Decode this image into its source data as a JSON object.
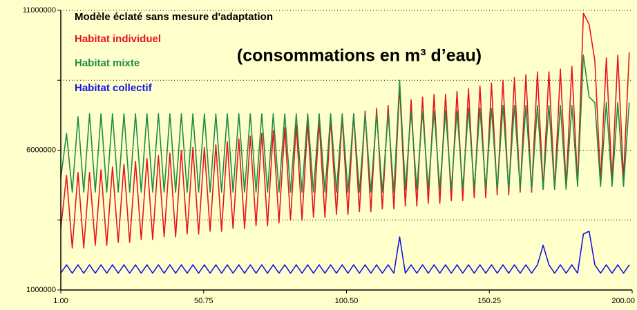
{
  "chart_data": {
    "type": "line",
    "title": "Modèle éclaté sans mesure d'adaptation",
    "annotation": "(consommations en m³ d’eau)",
    "xlim": [
      1,
      200
    ],
    "xticks": [
      {
        "value": 1,
        "label": "1.00"
      },
      {
        "value": 50.75,
        "label": "50.75"
      },
      {
        "value": 100.5,
        "label": "100.50"
      },
      {
        "value": 150.25,
        "label": "150.25"
      },
      {
        "value": 200,
        "label": "200.00"
      }
    ],
    "ylim": [
      1000000,
      11000000
    ],
    "yticks": [
      1000000,
      6000000,
      11000000
    ],
    "yminor_ticks": [
      3500000,
      8500000
    ],
    "grid": true,
    "x": [
      1,
      3,
      5,
      7,
      9,
      11,
      13,
      15,
      17,
      19,
      21,
      23,
      25,
      27,
      29,
      31,
      33,
      35,
      37,
      39,
      41,
      43,
      45,
      47,
      49,
      51,
      53,
      55,
      57,
      59,
      61,
      63,
      65,
      67,
      69,
      71,
      73,
      75,
      77,
      79,
      81,
      83,
      85,
      87,
      89,
      91,
      93,
      95,
      97,
      99,
      101,
      103,
      105,
      107,
      109,
      111,
      113,
      115,
      117,
      119,
      121,
      123,
      125,
      127,
      129,
      131,
      133,
      135,
      137,
      139,
      141,
      143,
      145,
      147,
      149,
      151,
      153,
      155,
      157,
      159,
      161,
      163,
      165,
      167,
      169,
      171,
      173,
      175,
      177,
      179,
      181,
      183,
      185,
      187,
      189,
      191,
      193,
      195,
      197,
      199
    ],
    "series": [
      {
        "name": "Habitat individuel",
        "color": "#e8141c",
        "values": [
          3200000,
          5100000,
          2500000,
          5200000,
          2500000,
          5200000,
          2600000,
          5300000,
          2600000,
          5400000,
          2700000,
          5500000,
          2700000,
          5600000,
          2800000,
          5700000,
          2800000,
          5800000,
          2900000,
          5900000,
          2900000,
          6000000,
          3000000,
          6100000,
          3000000,
          6100000,
          3100000,
          6200000,
          3100000,
          6300000,
          3200000,
          6400000,
          3200000,
          6500000,
          3300000,
          6600000,
          3300000,
          6700000,
          3400000,
          6800000,
          3500000,
          6900000,
          3500000,
          7000000,
          3600000,
          7000000,
          3600000,
          7100000,
          3700000,
          7200000,
          3700000,
          7300000,
          3800000,
          7400000,
          3800000,
          7500000,
          3900000,
          7600000,
          3900000,
          8300000,
          4000000,
          7800000,
          4000000,
          7900000,
          4100000,
          8000000,
          4100000,
          8000000,
          4200000,
          8100000,
          4200000,
          8200000,
          4300000,
          8300000,
          4300000,
          8400000,
          4400000,
          8500000,
          4400000,
          8600000,
          4500000,
          8700000,
          4500000,
          8800000,
          4600000,
          8800000,
          4600000,
          8900000,
          4700000,
          9000000,
          4800000,
          10900000,
          10500000,
          9200000,
          4900000,
          9300000,
          4900000,
          9400000,
          5000000,
          9500000
        ]
      },
      {
        "name": "Habitat mixte",
        "color": "#1e8c46",
        "values": [
          5000000,
          6600000,
          4500000,
          7200000,
          4500000,
          7300000,
          4500000,
          7300000,
          4500000,
          7300000,
          4500000,
          7300000,
          4500000,
          7300000,
          4500000,
          7300000,
          4500000,
          7300000,
          4500000,
          7300000,
          4500000,
          7300000,
          4500000,
          7300000,
          4500000,
          7300000,
          4500000,
          7300000,
          4500000,
          7300000,
          4500000,
          7300000,
          4500000,
          7300000,
          4500000,
          7300000,
          4500000,
          7300000,
          4500000,
          7300000,
          4500000,
          7300000,
          4500000,
          7300000,
          4500000,
          7300000,
          4500000,
          7300000,
          4500000,
          7300000,
          4500000,
          7300000,
          4500000,
          7300000,
          4500000,
          7300000,
          4500000,
          7300000,
          4500000,
          8500000,
          4600000,
          7400000,
          4600000,
          7400000,
          4600000,
          7400000,
          4600000,
          7400000,
          4600000,
          7400000,
          4600000,
          7500000,
          4600000,
          7500000,
          4600000,
          7500000,
          4600000,
          7600000,
          4600000,
          7600000,
          4600000,
          7600000,
          4600000,
          7600000,
          4600000,
          7600000,
          4600000,
          7600000,
          4600000,
          7600000,
          4700000,
          9400000,
          7900000,
          7700000,
          4700000,
          7700000,
          4700000,
          7700000,
          4700000,
          7700000
        ]
      },
      {
        "name": "Habitat collectif",
        "color": "#1414e6",
        "values": [
          1600000,
          1900000,
          1600000,
          1900000,
          1600000,
          1900000,
          1600000,
          1900000,
          1600000,
          1900000,
          1600000,
          1900000,
          1600000,
          1900000,
          1600000,
          1900000,
          1600000,
          1900000,
          1600000,
          1900000,
          1600000,
          1900000,
          1600000,
          1900000,
          1600000,
          1900000,
          1600000,
          1900000,
          1600000,
          1900000,
          1600000,
          1900000,
          1600000,
          1900000,
          1600000,
          1900000,
          1600000,
          1900000,
          1600000,
          1900000,
          1600000,
          1900000,
          1600000,
          1900000,
          1600000,
          1900000,
          1600000,
          1900000,
          1600000,
          1900000,
          1600000,
          1900000,
          1600000,
          1900000,
          1600000,
          1900000,
          1600000,
          1900000,
          1600000,
          2900000,
          1600000,
          1900000,
          1600000,
          1900000,
          1600000,
          1900000,
          1600000,
          1900000,
          1600000,
          1900000,
          1600000,
          1900000,
          1600000,
          1900000,
          1600000,
          1900000,
          1600000,
          1900000,
          1600000,
          1900000,
          1600000,
          1900000,
          1600000,
          1900000,
          2600000,
          1900000,
          1600000,
          1900000,
          1600000,
          1900000,
          1600000,
          3000000,
          3100000,
          1900000,
          1600000,
          1900000,
          1600000,
          1900000,
          1600000,
          1900000
        ]
      }
    ]
  }
}
